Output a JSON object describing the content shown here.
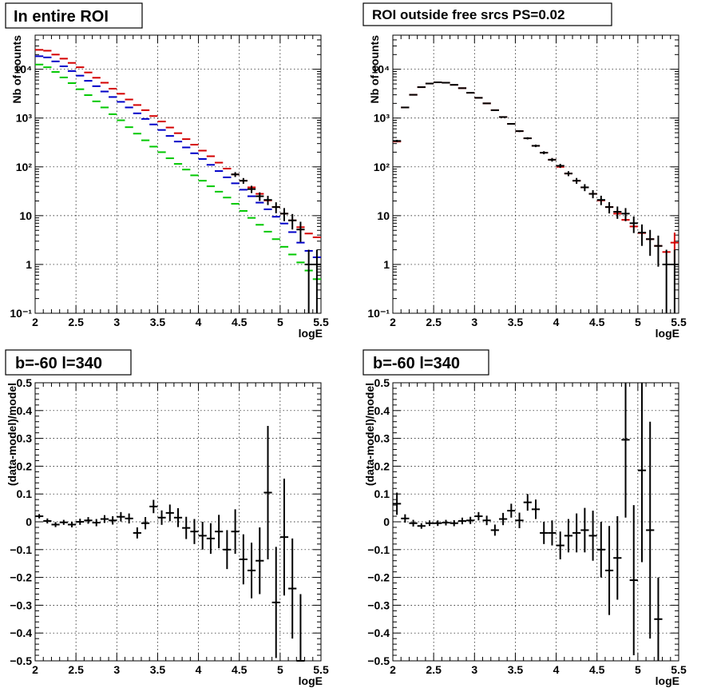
{
  "chart_data": [
    {
      "type": "scatter",
      "title": "In entire ROI",
      "xlabel": "logE",
      "ylabel": "Nb of counts",
      "xlim": [
        2,
        5.5
      ],
      "ylim": [
        0.1,
        50000
      ],
      "yscale": "log",
      "xticks": [
        "2",
        "2.5",
        "3",
        "3.5",
        "4",
        "4.5",
        "5",
        "5.5"
      ],
      "yticks": [
        "10⁻¹",
        "1",
        "10",
        "10²",
        "10³",
        "10⁴"
      ],
      "grid": true,
      "series": [
        {
          "color": "#d40000",
          "x": [
            2.05,
            2.15,
            2.25,
            2.35,
            2.45,
            2.55,
            2.65,
            2.75,
            2.85,
            2.95,
            3.05,
            3.15,
            3.25,
            3.35,
            3.45,
            3.55,
            3.65,
            3.75,
            3.85,
            3.95,
            4.05,
            4.15,
            4.25,
            4.35,
            4.45,
            4.55,
            4.65,
            4.75,
            4.85,
            4.95,
            5.05,
            5.15,
            5.25,
            5.35,
            5.45
          ],
          "y": [
            25000,
            24000,
            20000,
            16500,
            13500,
            11000,
            8600,
            6700,
            5300,
            4000,
            3150,
            2400,
            1850,
            1450,
            1100,
            850,
            640,
            490,
            370,
            285,
            215,
            165,
            122,
            92,
            70,
            52,
            38,
            28,
            20.5,
            15,
            11,
            8,
            5.8,
            4.3,
            3.6
          ],
          "err": [
            0,
            0,
            0,
            0,
            0,
            0,
            0,
            0,
            0,
            0,
            0,
            0,
            0,
            0,
            0,
            0,
            0,
            0,
            0,
            0,
            0,
            0,
            0,
            0,
            0,
            0,
            0,
            0,
            0,
            0,
            0,
            0,
            0,
            0,
            0
          ]
        },
        {
          "color": "#0000c8",
          "x": [
            2.05,
            2.15,
            2.25,
            2.35,
            2.45,
            2.55,
            2.65,
            2.75,
            2.85,
            2.95,
            3.05,
            3.15,
            3.25,
            3.35,
            3.45,
            3.55,
            3.65,
            3.75,
            3.85,
            3.95,
            4.05,
            4.15,
            4.25,
            4.35,
            4.45,
            4.55,
            4.65,
            4.75,
            4.85,
            4.95,
            5.05,
            5.15,
            5.25,
            5.35,
            5.45
          ],
          "y": [
            18500,
            17500,
            14500,
            11500,
            9200,
            7400,
            5800,
            4500,
            3500,
            2700,
            2150,
            1650,
            1250,
            960,
            740,
            570,
            430,
            330,
            250,
            190,
            145,
            110,
            82,
            61,
            46,
            34,
            25,
            18.5,
            13.5,
            9.5,
            6.9,
            4.6,
            2.8,
            1.9,
            1.4
          ],
          "err": [
            0,
            0,
            0,
            0,
            0,
            0,
            0,
            0,
            0,
            0,
            0,
            0,
            0,
            0,
            0,
            0,
            0,
            0,
            0,
            0,
            0,
            0,
            0,
            0,
            0,
            0,
            0,
            0,
            0,
            0,
            0,
            0,
            0,
            0,
            0
          ]
        },
        {
          "color": "#00c800",
          "x": [
            2.05,
            2.15,
            2.25,
            2.35,
            2.45,
            2.55,
            2.65,
            2.75,
            2.85,
            2.95,
            3.05,
            3.15,
            3.25,
            3.35,
            3.45,
            3.55,
            3.65,
            3.75,
            3.85,
            3.95,
            4.05,
            4.15,
            4.25,
            4.35,
            4.45,
            4.55,
            4.65,
            4.75,
            4.85,
            4.95,
            5.05,
            5.15,
            5.25,
            5.35,
            5.45
          ],
          "y": [
            12500,
            11000,
            8800,
            6800,
            5200,
            3900,
            2950,
            2200,
            1650,
            1200,
            900,
            650,
            480,
            350,
            260,
            200,
            150,
            115,
            88,
            67,
            52,
            40,
            31,
            23.5,
            17.5,
            12.5,
            9,
            6.5,
            4.7,
            3.3,
            2.3,
            1.6,
            1.1,
            0.75,
            0.5
          ],
          "err": [
            0,
            0,
            0,
            0,
            0,
            0,
            0,
            0,
            0,
            0,
            0,
            0,
            0,
            0,
            0,
            0,
            0,
            0,
            0,
            0,
            0,
            0,
            0,
            0,
            0,
            0,
            0,
            0,
            0,
            0,
            0,
            0,
            0,
            0,
            0
          ]
        },
        {
          "color": "#000000",
          "x": [
            4.45,
            4.55,
            4.65,
            4.75,
            4.85,
            4.95,
            5.05,
            5.15,
            5.25,
            5.35,
            5.45
          ],
          "y": [
            70,
            52,
            35,
            25,
            21,
            15,
            11,
            8,
            5.2,
            1,
            1
          ],
          "err": [
            8,
            7,
            6,
            5,
            4.5,
            3.8,
            3.3,
            2.8,
            2.3,
            1,
            1
          ]
        }
      ]
    },
    {
      "type": "scatter",
      "title": "ROI outside free srcs PS=0.02",
      "xlabel": "logE",
      "ylabel": "Nb of counts",
      "xlim": [
        2,
        5.5
      ],
      "ylim": [
        0.1,
        50000
      ],
      "yscale": "log",
      "xticks": [
        "2",
        "2.5",
        "3",
        "3.5",
        "4",
        "4.5",
        "5",
        "5.5"
      ],
      "yticks": [
        "10⁻¹",
        "1",
        "10",
        "10²",
        "10³",
        "10⁴"
      ],
      "grid": true,
      "series": [
        {
          "color": "#d40000",
          "x": [
            2.05,
            2.15,
            2.25,
            2.35,
            2.45,
            2.55,
            2.65,
            2.75,
            2.85,
            2.95,
            3.05,
            3.15,
            3.25,
            3.35,
            3.45,
            3.55,
            3.65,
            3.75,
            3.85,
            3.95,
            4.05,
            4.15,
            4.25,
            4.35,
            4.45,
            4.55,
            4.65,
            4.75,
            4.85,
            4.95,
            5.05,
            5.15,
            5.25,
            5.35,
            5.45
          ],
          "y": [
            330,
            1650,
            3000,
            4300,
            5100,
            5400,
            5300,
            4800,
            4100,
            3300,
            2600,
            2000,
            1450,
            1050,
            760,
            540,
            385,
            270,
            195,
            140,
            100,
            73,
            52,
            38,
            28,
            20.5,
            15,
            11,
            8.2,
            6,
            4.4,
            3.3,
            2.4,
            1.8,
            2.8
          ],
          "err": [
            0,
            0,
            0,
            0,
            0,
            0,
            0,
            0,
            0,
            0,
            0,
            0,
            0,
            0,
            0,
            0,
            0,
            0,
            0,
            0,
            0,
            0,
            0,
            0,
            0,
            0,
            0,
            0,
            0,
            0,
            0,
            0,
            0,
            0,
            1.7
          ]
        },
        {
          "color": "#000000",
          "x": [
            2.05,
            2.15,
            2.25,
            2.35,
            2.45,
            2.55,
            2.65,
            2.75,
            2.85,
            2.95,
            3.05,
            3.15,
            3.25,
            3.35,
            3.45,
            3.55,
            3.65,
            3.75,
            3.85,
            3.95,
            4.05,
            4.15,
            4.25,
            4.35,
            4.45,
            4.55,
            4.65,
            4.75,
            4.85,
            4.95,
            5.05,
            5.15,
            5.25,
            5.35,
            5.45
          ],
          "y": [
            340,
            1650,
            3000,
            4300,
            5100,
            5400,
            5300,
            4800,
            4100,
            3300,
            2600,
            2000,
            1450,
            1050,
            760,
            540,
            385,
            270,
            195,
            140,
            105,
            73,
            52,
            38,
            28,
            21,
            15,
            12,
            11,
            7,
            4.5,
            3.3,
            2.4,
            1,
            1
          ],
          "err": [
            18,
            40,
            55,
            65,
            72,
            74,
            73,
            69,
            64,
            57,
            51,
            45,
            38,
            32,
            27,
            23,
            20,
            16,
            14,
            12,
            10,
            8.5,
            7.2,
            6.2,
            5.3,
            4.6,
            3.9,
            3.4,
            3.3,
            2.6,
            2.1,
            1.8,
            1.5,
            1,
            1
          ]
        }
      ]
    },
    {
      "type": "scatter",
      "title": "b=-60 l=340",
      "xlabel": "logE",
      "ylabel": "(data-model)/model",
      "xlim": [
        2,
        5.5
      ],
      "ylim": [
        -0.5,
        0.5
      ],
      "xticks": [
        "2",
        "2.5",
        "3",
        "3.5",
        "4",
        "4.5",
        "5",
        "5.5"
      ],
      "yticks": [
        "−0.5",
        "−0.4",
        "−0.3",
        "−0.2",
        "−0.1",
        "0",
        "0.1",
        "0.2",
        "0.3",
        "0.4",
        "0.5"
      ],
      "grid": true,
      "series": [
        {
          "color": "#000000",
          "x": [
            2.05,
            2.15,
            2.25,
            2.35,
            2.45,
            2.55,
            2.65,
            2.75,
            2.85,
            2.95,
            3.05,
            3.15,
            3.25,
            3.35,
            3.45,
            3.55,
            3.65,
            3.75,
            3.85,
            3.95,
            4.05,
            4.15,
            4.25,
            4.35,
            4.45,
            4.55,
            4.65,
            4.75,
            4.85,
            4.95,
            5.05,
            5.15,
            5.25
          ],
          "y": [
            0.02,
            0.003,
            -0.01,
            -0.002,
            -0.01,
            0,
            0.005,
            -0.003,
            0.01,
            0.005,
            0.018,
            0.012,
            -0.04,
            -0.005,
            0.055,
            0.015,
            0.032,
            0.015,
            -0.022,
            -0.035,
            -0.05,
            -0.06,
            -0.035,
            -0.1,
            -0.035,
            -0.135,
            -0.175,
            -0.14,
            0.105,
            -0.29,
            -0.055,
            -0.24,
            -0.5
          ],
          "err": [
            0.008,
            0.009,
            0.009,
            0.009,
            0.01,
            0.011,
            0.012,
            0.013,
            0.014,
            0.015,
            0.017,
            0.018,
            0.02,
            0.022,
            0.024,
            0.026,
            0.03,
            0.034,
            0.04,
            0.045,
            0.05,
            0.055,
            0.06,
            0.07,
            0.08,
            0.09,
            0.1,
            0.12,
            0.24,
            0.2,
            0.21,
            0.18,
            0.24
          ]
        }
      ]
    },
    {
      "type": "scatter",
      "title": "b=-60 l=340",
      "xlabel": "logE",
      "ylabel": "(data-model)/model",
      "xlim": [
        2,
        5.5
      ],
      "ylim": [
        -0.5,
        0.5
      ],
      "xticks": [
        "2",
        "2.5",
        "3",
        "3.5",
        "4",
        "4.5",
        "5",
        "5.5"
      ],
      "yticks": [
        "−0.5",
        "−0.4",
        "−0.3",
        "−0.2",
        "−0.1",
        "0",
        "0.1",
        "0.2",
        "0.3",
        "0.4",
        "0.5"
      ],
      "grid": true,
      "series": [
        {
          "color": "#000000",
          "x": [
            2.05,
            2.15,
            2.25,
            2.35,
            2.45,
            2.55,
            2.65,
            2.75,
            2.85,
            2.95,
            3.05,
            3.15,
            3.25,
            3.35,
            3.45,
            3.55,
            3.65,
            3.75,
            3.85,
            3.95,
            4.05,
            4.15,
            4.25,
            4.35,
            4.45,
            4.55,
            4.65,
            4.75,
            4.85,
            4.95,
            5.05,
            5.15,
            5.25
          ],
          "y": [
            0.065,
            0.012,
            -0.005,
            -0.015,
            -0.005,
            -0.005,
            -0.003,
            -0.005,
            0.003,
            0.005,
            0.02,
            0.005,
            -0.03,
            0.01,
            0.04,
            0.005,
            0.07,
            0.045,
            -0.04,
            -0.04,
            -0.085,
            -0.05,
            -0.04,
            -0.03,
            -0.05,
            -0.1,
            -0.175,
            -0.13,
            0.295,
            -0.21,
            0.185,
            -0.03,
            -0.35
          ],
          "err": [
            0.04,
            0.015,
            0.012,
            0.01,
            0.01,
            0.01,
            0.01,
            0.011,
            0.012,
            0.013,
            0.015,
            0.017,
            0.02,
            0.022,
            0.025,
            0.028,
            0.03,
            0.035,
            0.04,
            0.045,
            0.05,
            0.06,
            0.07,
            0.08,
            0.09,
            0.1,
            0.16,
            0.15,
            0.28,
            0.27,
            0.33,
            0.39,
            0.15
          ]
        }
      ]
    }
  ]
}
